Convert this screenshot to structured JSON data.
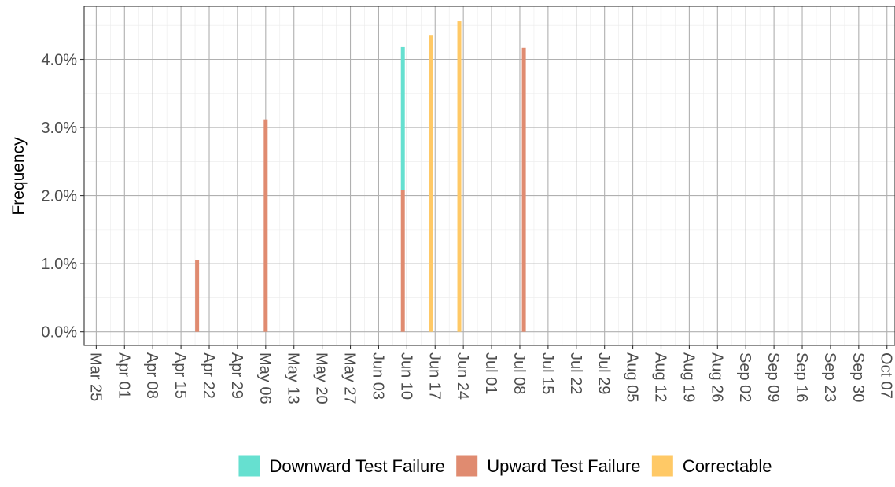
{
  "chart_data": {
    "type": "bar",
    "stacked": true,
    "ylabel": "Frequency",
    "xlabel": "",
    "ylim": [
      -0.2,
      4.78
    ],
    "yticks": [
      0.0,
      1.0,
      2.0,
      3.0,
      4.0
    ],
    "ytick_labels": [
      "0.0%",
      "1.0%",
      "2.0%",
      "3.0%",
      "4.0%"
    ],
    "x_range": [
      "2024-03-22",
      "2024-10-09"
    ],
    "xtick_dates": [
      "2024-03-25",
      "2024-04-01",
      "2024-04-08",
      "2024-04-15",
      "2024-04-22",
      "2024-04-29",
      "2024-05-06",
      "2024-05-13",
      "2024-05-20",
      "2024-05-27",
      "2024-06-03",
      "2024-06-10",
      "2024-06-17",
      "2024-06-24",
      "2024-07-01",
      "2024-07-08",
      "2024-07-15",
      "2024-07-22",
      "2024-07-29",
      "2024-08-05",
      "2024-08-12",
      "2024-08-19",
      "2024-08-26",
      "2024-09-02",
      "2024-09-09",
      "2024-09-16",
      "2024-09-23",
      "2024-09-30",
      "2024-10-07"
    ],
    "xtick_labels": [
      "Mar 25",
      "Apr 01",
      "Apr 08",
      "Apr 15",
      "Apr 22",
      "Apr 29",
      "May 06",
      "May 13",
      "May 20",
      "May 27",
      "Jun 03",
      "Jun 10",
      "Jun 17",
      "Jun 24",
      "Jul 01",
      "Jul 08",
      "Jul 15",
      "Jul 22",
      "Jul 29",
      "Aug 05",
      "Aug 12",
      "Aug 19",
      "Aug 26",
      "Sep 02",
      "Sep 09",
      "Sep 16",
      "Sep 23",
      "Sep 30",
      "Oct 07"
    ],
    "series": [
      {
        "name": "Downward Test Failure",
        "color": "#66e0d0",
        "points": [
          {
            "x": "2024-06-09",
            "y": 2.1
          }
        ]
      },
      {
        "name": "Upward Test Failure",
        "color": "#e08b70",
        "points": [
          {
            "x": "2024-04-19",
            "y": 1.05
          },
          {
            "x": "2024-05-06",
            "y": 3.12
          },
          {
            "x": "2024-06-09",
            "y": 2.08
          },
          {
            "x": "2024-07-09",
            "y": 4.17
          }
        ]
      },
      {
        "name": "Correctable",
        "color": "#ffc966",
        "points": [
          {
            "x": "2024-06-16",
            "y": 4.35
          },
          {
            "x": "2024-06-23",
            "y": 4.56
          }
        ]
      }
    ],
    "grid": true,
    "legend_position": "bottom"
  }
}
